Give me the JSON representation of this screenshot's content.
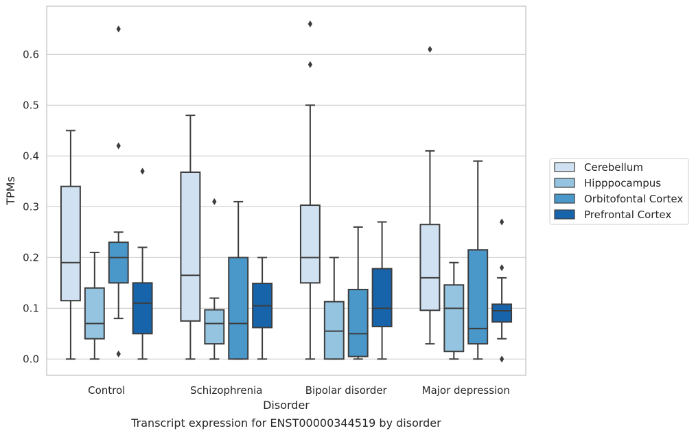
{
  "chart_data": {
    "type": "box",
    "caption": "Transcript expression for ENST00000344519 by disorder",
    "xlabel": "Disorder",
    "ylabel": "TPMs",
    "ylim": [
      -0.032,
      0.695
    ],
    "yticks": [
      "0.0",
      "0.1",
      "0.2",
      "0.3",
      "0.4",
      "0.5",
      "0.6"
    ],
    "grid": true,
    "legend_placement": "right",
    "categories": [
      "Control",
      "Schizophrenia",
      "Bipolar disorder",
      "Major depression"
    ],
    "series": [
      {
        "name": "Cerebellum",
        "color": "#d0e1f2",
        "boxes": [
          {
            "whislo": 0.0,
            "q1": 0.115,
            "med": 0.19,
            "q3": 0.34,
            "whishi": 0.45,
            "fliers": []
          },
          {
            "whislo": 0.0,
            "q1": 0.075,
            "med": 0.165,
            "q3": 0.368,
            "whishi": 0.48,
            "fliers": []
          },
          {
            "whislo": 0.0,
            "q1": 0.15,
            "med": 0.2,
            "q3": 0.303,
            "whishi": 0.5,
            "fliers": [
              0.58,
              0.66
            ]
          },
          {
            "whislo": 0.03,
            "q1": 0.096,
            "med": 0.16,
            "q3": 0.265,
            "whishi": 0.41,
            "fliers": [
              0.61
            ]
          }
        ]
      },
      {
        "name": "Hipppocampus",
        "color": "#94c4df",
        "boxes": [
          {
            "whislo": 0.0,
            "q1": 0.04,
            "med": 0.07,
            "q3": 0.14,
            "whishi": 0.21,
            "fliers": []
          },
          {
            "whislo": 0.0,
            "q1": 0.03,
            "med": 0.07,
            "q3": 0.097,
            "whishi": 0.12,
            "fliers": [
              0.31
            ]
          },
          {
            "whislo": 0.0,
            "q1": 0.0,
            "med": 0.055,
            "q3": 0.113,
            "whishi": 0.2,
            "fliers": []
          },
          {
            "whislo": 0.0,
            "q1": 0.015,
            "med": 0.1,
            "q3": 0.146,
            "whishi": 0.19,
            "fliers": []
          }
        ]
      },
      {
        "name": "Orbitofontal Cortex",
        "color": "#4a98c9",
        "boxes": [
          {
            "whislo": 0.08,
            "q1": 0.15,
            "med": 0.2,
            "q3": 0.23,
            "whishi": 0.25,
            "fliers": [
              0.01,
              0.42,
              0.65
            ]
          },
          {
            "whislo": 0.0,
            "q1": 0.0,
            "med": 0.07,
            "q3": 0.2,
            "whishi": 0.31,
            "fliers": []
          },
          {
            "whislo": 0.0,
            "q1": 0.005,
            "med": 0.05,
            "q3": 0.137,
            "whishi": 0.26,
            "fliers": []
          },
          {
            "whislo": 0.0,
            "q1": 0.03,
            "med": 0.06,
            "q3": 0.215,
            "whishi": 0.39,
            "fliers": []
          }
        ]
      },
      {
        "name": "Prefrontal Cortex",
        "color": "#1764ab",
        "boxes": [
          {
            "whislo": 0.0,
            "q1": 0.05,
            "med": 0.11,
            "q3": 0.15,
            "whishi": 0.22,
            "fliers": [
              0.37
            ]
          },
          {
            "whislo": 0.0,
            "q1": 0.062,
            "med": 0.105,
            "q3": 0.149,
            "whishi": 0.2,
            "fliers": []
          },
          {
            "whislo": 0.0,
            "q1": 0.064,
            "med": 0.1,
            "q3": 0.178,
            "whishi": 0.27,
            "fliers": []
          },
          {
            "whislo": 0.04,
            "q1": 0.073,
            "med": 0.095,
            "q3": 0.108,
            "whishi": 0.16,
            "fliers": [
              0.0,
              0.18,
              0.27
            ]
          }
        ]
      }
    ]
  }
}
